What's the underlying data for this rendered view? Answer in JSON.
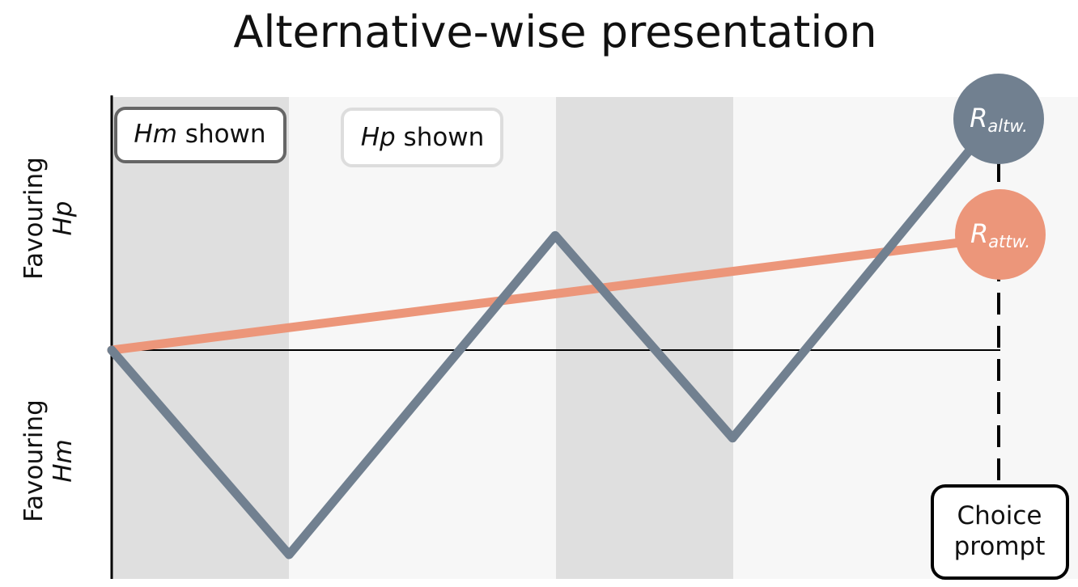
{
  "title": "Alternative-wise presentation",
  "axis": {
    "upper_label_line1": "Favouring",
    "upper_label_line2": "Hp",
    "lower_label_line1": "Favouring",
    "lower_label_line2": "Hm"
  },
  "boxes": {
    "hm_shown": {
      "italic": "Hm",
      "rest": " shown"
    },
    "hp_shown": {
      "italic": "Hp",
      "rest": " shown"
    }
  },
  "choice_prompt": {
    "line1": "Choice",
    "line2": "prompt"
  },
  "markers": {
    "altw": {
      "main": "R",
      "sub": "altw."
    },
    "attw": {
      "main": "R",
      "sub": "attw."
    }
  },
  "colors": {
    "altw_line": "#718090",
    "attw_line": "#ec967a",
    "hm_band": "#dfdfdf",
    "hp_band": "#f7f7f7"
  },
  "chart_data": {
    "type": "line",
    "phases": [
      "Hm shown",
      "Hp shown",
      "Hm shown",
      "Hp shown"
    ],
    "series": [
      {
        "name": "R altw.",
        "x": [
          0,
          1,
          2.5,
          3.5,
          5
        ],
        "y": [
          0,
          -1.0,
          0.56,
          -0.43,
          1.15
        ]
      },
      {
        "name": "R attw.",
        "x": [
          0,
          5
        ],
        "y": [
          0,
          0.55
        ]
      }
    ]
  }
}
